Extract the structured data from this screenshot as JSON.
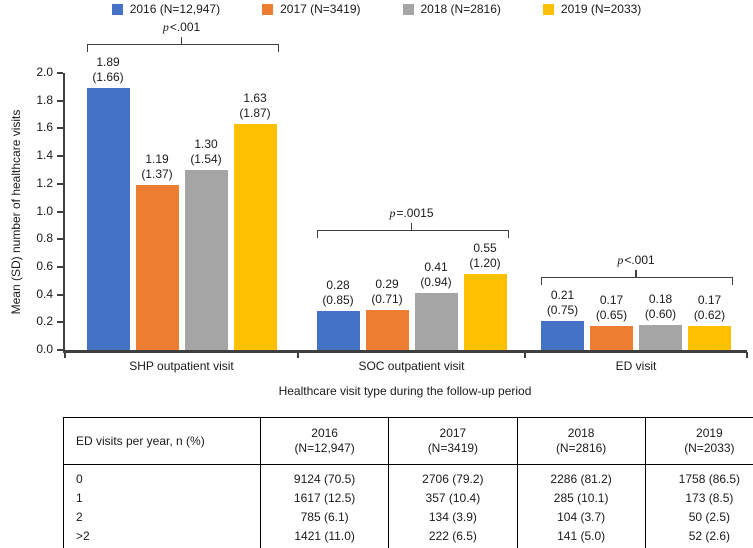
{
  "chart_data": {
    "type": "bar",
    "title": "",
    "xlabel": "Healthcare visit type during the follow-up period",
    "ylabel": "Mean (SD) number of healthcare visits",
    "ylim": [
      0.0,
      2.0
    ],
    "ytick_step": 0.2,
    "legend_position": "top",
    "grid": false,
    "categories": [
      "SHP outpatient visit",
      "SOC outpatient visit",
      "ED visit"
    ],
    "series": [
      {
        "name": "2016 (N=12,947)",
        "color": "#4472C4",
        "values": [
          1.89,
          0.28,
          0.21
        ],
        "sd": [
          1.66,
          0.85,
          0.75
        ]
      },
      {
        "name": "2017 (N=3419)",
        "color": "#ED7D31",
        "values": [
          1.19,
          0.29,
          0.17
        ],
        "sd": [
          1.37,
          0.71,
          0.65
        ]
      },
      {
        "name": "2018 (N=2816)",
        "color": "#A5A5A5",
        "values": [
          1.3,
          0.41,
          0.18
        ],
        "sd": [
          1.54,
          0.94,
          0.6
        ]
      },
      {
        "name": "2019 (N=2033)",
        "color": "#FFC000",
        "values": [
          1.63,
          0.55,
          0.17
        ],
        "sd": [
          1.87,
          1.2,
          0.62
        ]
      }
    ],
    "annotations": [
      {
        "group": 0,
        "label": "p<.001"
      },
      {
        "group": 1,
        "label": "p=.0015"
      },
      {
        "group": 2,
        "label": "p<.001"
      }
    ]
  },
  "table": {
    "row_header": "ED visits per year, n (%)",
    "columns": [
      {
        "year": "2016",
        "n": "(N=12,947)"
      },
      {
        "year": "2017",
        "n": "(N=3419)"
      },
      {
        "year": "2018",
        "n": "(N=2816)"
      },
      {
        "year": "2019",
        "n": "(N=2033)"
      }
    ],
    "rows": [
      {
        "label": "0",
        "cells": [
          "9124 (70.5)",
          "2706 (79.2)",
          "2286 (81.2)",
          "1758 (86.5)"
        ]
      },
      {
        "label": "1",
        "cells": [
          "1617 (12.5)",
          "357 (10.4)",
          "285 (10.1)",
          "173 (8.5)"
        ]
      },
      {
        "label": "2",
        "cells": [
          "785 (6.1)",
          "134 (3.9)",
          "104 (3.7)",
          "50 (2.5)"
        ]
      },
      {
        "label": ">2",
        "cells": [
          "1421 (11.0)",
          "222 (6.5)",
          "141 (5.0)",
          "52 (2.6)"
        ]
      }
    ]
  },
  "colors": {
    "axis": "#3f3f3f",
    "text": "#1a1a1a",
    "table_border": "#000000"
  }
}
